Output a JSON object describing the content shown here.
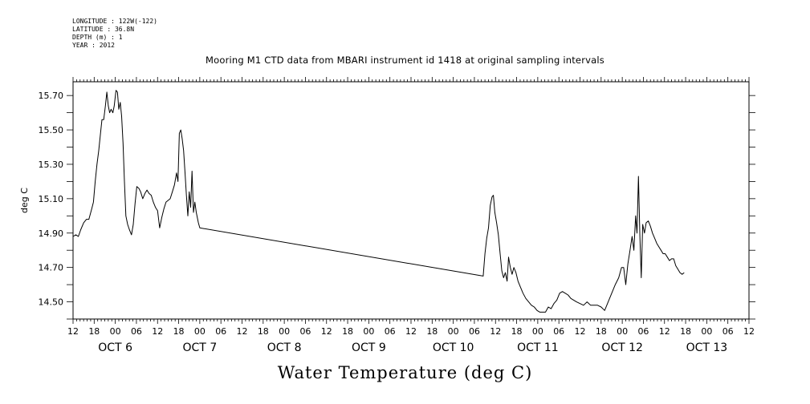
{
  "meta": {
    "longitude": "LONGITUDE : 122W(-122)",
    "latitude": "LATITUDE : 36.8N",
    "depth": "DEPTH (m) : 1",
    "year": "YEAR : 2012"
  },
  "title": "Mooring M1 CTD data from MBARI instrument id 1418 at original sampling intervals",
  "bottom_title": "Water Temperature (deg C)",
  "chart_data": {
    "type": "line",
    "title": "Mooring M1 CTD data from MBARI instrument id 1418 at original sampling intervals",
    "ylabel": "deg C",
    "xlabel": "",
    "ylim": [
      14.4,
      15.78
    ],
    "x_unit": "hours since OCT 5 12:00, 2012",
    "x_range_hours": [
      0,
      192
    ],
    "y_ticks": [
      "14.50",
      "14.70",
      "14.90",
      "15.10",
      "15.30",
      "15.50",
      "15.70"
    ],
    "x_hour_ticks": [
      "12",
      "18",
      "00",
      "06",
      "12",
      "18",
      "00",
      "06",
      "12",
      "18",
      "00",
      "06",
      "12",
      "18",
      "00",
      "06",
      "12",
      "18",
      "00",
      "06",
      "12",
      "18",
      "00",
      "06",
      "12",
      "18",
      "00",
      "06",
      "12",
      "18",
      "00",
      "06",
      "12"
    ],
    "day_labels": [
      "OCT  6",
      "OCT  7",
      "OCT  8",
      "OCT  9",
      "OCT 10",
      "OCT 11",
      "OCT 12",
      "OCT 13"
    ],
    "series": [
      {
        "values": [
          [
            0.0,
            14.88
          ],
          [
            0.8,
            14.89
          ],
          [
            1.5,
            14.88
          ],
          [
            2.2,
            14.92
          ],
          [
            3.0,
            14.96
          ],
          [
            3.8,
            14.98
          ],
          [
            4.5,
            14.98
          ],
          [
            5.3,
            15.04
          ],
          [
            5.8,
            15.08
          ],
          [
            6.3,
            15.2
          ],
          [
            6.8,
            15.3
          ],
          [
            7.3,
            15.38
          ],
          [
            7.8,
            15.48
          ],
          [
            8.2,
            15.56
          ],
          [
            8.7,
            15.56
          ],
          [
            9.2,
            15.64
          ],
          [
            9.6,
            15.72
          ],
          [
            10.0,
            15.64
          ],
          [
            10.4,
            15.6
          ],
          [
            10.8,
            15.62
          ],
          [
            11.3,
            15.6
          ],
          [
            11.7,
            15.64
          ],
          [
            12.2,
            15.73
          ],
          [
            12.6,
            15.72
          ],
          [
            13.0,
            15.62
          ],
          [
            13.4,
            15.66
          ],
          [
            13.8,
            15.58
          ],
          [
            14.2,
            15.42
          ],
          [
            14.6,
            15.2
          ],
          [
            15.0,
            15.0
          ],
          [
            15.5,
            14.95
          ],
          [
            16.0,
            14.92
          ],
          [
            16.6,
            14.89
          ],
          [
            17.1,
            14.95
          ],
          [
            17.6,
            15.07
          ],
          [
            18.1,
            15.17
          ],
          [
            18.7,
            15.16
          ],
          [
            19.2,
            15.14
          ],
          [
            19.8,
            15.1
          ],
          [
            20.4,
            15.13
          ],
          [
            21.0,
            15.15
          ],
          [
            21.6,
            15.13
          ],
          [
            22.2,
            15.12
          ],
          [
            22.8,
            15.08
          ],
          [
            23.4,
            15.05
          ],
          [
            24.0,
            15.03
          ],
          [
            24.6,
            14.93
          ],
          [
            25.2,
            14.99
          ],
          [
            25.8,
            15.04
          ],
          [
            26.4,
            15.08
          ],
          [
            27.0,
            15.09
          ],
          [
            27.6,
            15.1
          ],
          [
            28.2,
            15.14
          ],
          [
            28.8,
            15.18
          ],
          [
            29.4,
            15.25
          ],
          [
            29.8,
            15.2
          ],
          [
            30.2,
            15.48
          ],
          [
            30.6,
            15.5
          ],
          [
            31.0,
            15.45
          ],
          [
            31.4,
            15.38
          ],
          [
            31.8,
            15.25
          ],
          [
            32.2,
            15.12
          ],
          [
            32.6,
            15.0
          ],
          [
            33.0,
            15.14
          ],
          [
            33.4,
            15.05
          ],
          [
            33.8,
            15.26
          ],
          [
            34.2,
            15.02
          ],
          [
            34.6,
            15.08
          ],
          [
            35.0,
            15.02
          ],
          [
            35.6,
            14.96
          ],
          [
            36.0,
            14.93
          ],
          [
            116.5,
            14.65
          ],
          [
            117.0,
            14.78
          ],
          [
            117.5,
            14.87
          ],
          [
            118.0,
            14.93
          ],
          [
            118.5,
            15.06
          ],
          [
            119.0,
            15.11
          ],
          [
            119.4,
            15.12
          ],
          [
            119.8,
            15.02
          ],
          [
            120.3,
            14.96
          ],
          [
            120.8,
            14.89
          ],
          [
            121.3,
            14.78
          ],
          [
            121.8,
            14.68
          ],
          [
            122.3,
            14.64
          ],
          [
            122.8,
            14.67
          ],
          [
            123.3,
            14.62
          ],
          [
            123.7,
            14.76
          ],
          [
            124.2,
            14.7
          ],
          [
            124.7,
            14.66
          ],
          [
            125.2,
            14.7
          ],
          [
            125.8,
            14.67
          ],
          [
            126.4,
            14.62
          ],
          [
            127.0,
            14.59
          ],
          [
            127.8,
            14.55
          ],
          [
            128.6,
            14.52
          ],
          [
            129.4,
            14.5
          ],
          [
            130.2,
            14.48
          ],
          [
            131.0,
            14.47
          ],
          [
            131.8,
            14.45
          ],
          [
            132.6,
            14.44
          ],
          [
            133.4,
            14.44
          ],
          [
            134.2,
            14.44
          ],
          [
            135.0,
            14.47
          ],
          [
            135.8,
            14.46
          ],
          [
            136.6,
            14.49
          ],
          [
            137.4,
            14.51
          ],
          [
            138.2,
            14.55
          ],
          [
            139.0,
            14.56
          ],
          [
            139.8,
            14.55
          ],
          [
            140.6,
            14.54
          ],
          [
            141.4,
            14.52
          ],
          [
            142.2,
            14.51
          ],
          [
            143.0,
            14.5
          ],
          [
            144.0,
            14.49
          ],
          [
            145.0,
            14.48
          ],
          [
            146.0,
            14.5
          ],
          [
            147.0,
            14.48
          ],
          [
            148.0,
            14.48
          ],
          [
            149.0,
            14.48
          ],
          [
            150.0,
            14.47
          ],
          [
            151.0,
            14.45
          ],
          [
            152.0,
            14.5
          ],
          [
            153.0,
            14.55
          ],
          [
            154.0,
            14.6
          ],
          [
            155.0,
            14.64
          ],
          [
            155.8,
            14.7
          ],
          [
            156.4,
            14.7
          ],
          [
            157.0,
            14.6
          ],
          [
            157.6,
            14.72
          ],
          [
            158.2,
            14.8
          ],
          [
            158.8,
            14.88
          ],
          [
            159.3,
            14.8
          ],
          [
            159.8,
            15.0
          ],
          [
            160.2,
            14.9
          ],
          [
            160.6,
            15.23
          ],
          [
            161.0,
            14.88
          ],
          [
            161.4,
            14.64
          ],
          [
            161.8,
            14.95
          ],
          [
            162.3,
            14.9
          ],
          [
            162.8,
            14.96
          ],
          [
            163.4,
            14.97
          ],
          [
            164.0,
            14.94
          ],
          [
            164.6,
            14.9
          ],
          [
            165.2,
            14.87
          ],
          [
            165.8,
            14.84
          ],
          [
            166.4,
            14.82
          ],
          [
            167.0,
            14.8
          ],
          [
            167.6,
            14.78
          ],
          [
            168.2,
            14.78
          ],
          [
            168.8,
            14.76
          ],
          [
            169.4,
            14.74
          ],
          [
            170.0,
            14.75
          ],
          [
            170.6,
            14.75
          ],
          [
            171.2,
            14.71
          ],
          [
            171.8,
            14.69
          ],
          [
            172.4,
            14.67
          ],
          [
            173.0,
            14.66
          ],
          [
            173.6,
            14.67
          ]
        ]
      }
    ]
  }
}
